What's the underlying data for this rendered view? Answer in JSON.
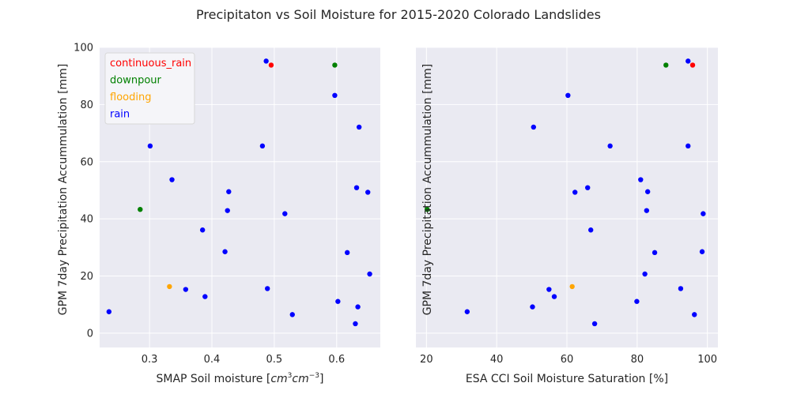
{
  "title": "Precipitaton vs Soil Moisture for 2015-2020 Colorado Landslides",
  "colors": {
    "background": "#eaeaf2",
    "grid": "#ffffff",
    "continuous_rain": "#ff0000",
    "downpour": "#008000",
    "flooding": "#ffa500",
    "rain": "#0000ff"
  },
  "legend": {
    "placement": "top-left",
    "entries": [
      {
        "label": "continuous_rain",
        "color": "#ff0000"
      },
      {
        "label": "downpour",
        "color": "#008000"
      },
      {
        "label": "flooding",
        "color": "#ffa500"
      },
      {
        "label": "rain",
        "color": "#0000ff"
      }
    ]
  },
  "chart_data": [
    {
      "type": "scatter",
      "xlabel": "SMAP Soil moisture [cm³cm⁻³]",
      "ylabel": "GPM 7day Precipitation Accummulation [mm]",
      "xlim": [
        0.22,
        0.67
      ],
      "ylim": [
        -5,
        100
      ],
      "xticks": [
        "0.3",
        "0.4",
        "0.5",
        "0.6"
      ],
      "yticks": [
        "0",
        "20",
        "40",
        "60",
        "80",
        "100"
      ],
      "grid": true,
      "series": [
        {
          "name": "continuous_rain",
          "points": [
            [
              0.495,
              93.8
            ]
          ]
        },
        {
          "name": "downpour",
          "points": [
            [
              0.597,
              93.8
            ],
            [
              0.285,
              43.3
            ]
          ]
        },
        {
          "name": "flooding",
          "points": [
            [
              0.332,
              16.3
            ]
          ]
        },
        {
          "name": "rain",
          "points": [
            [
              0.487,
              95.2
            ],
            [
              0.597,
              83.2
            ],
            [
              0.636,
              72.1
            ],
            [
              0.301,
              65.5
            ],
            [
              0.481,
              65.5
            ],
            [
              0.336,
              53.7
            ],
            [
              0.632,
              50.9
            ],
            [
              0.65,
              49.3
            ],
            [
              0.427,
              49.5
            ],
            [
              0.425,
              42.9
            ],
            [
              0.517,
              41.8
            ],
            [
              0.385,
              36.1
            ],
            [
              0.421,
              28.5
            ],
            [
              0.617,
              28.2
            ],
            [
              0.653,
              20.7
            ],
            [
              0.358,
              15.3
            ],
            [
              0.489,
              15.6
            ],
            [
              0.389,
              12.8
            ],
            [
              0.602,
              11.1
            ],
            [
              0.634,
              9.2
            ],
            [
              0.235,
              7.5
            ],
            [
              0.529,
              6.5
            ],
            [
              0.63,
              3.3
            ]
          ]
        }
      ]
    },
    {
      "type": "scatter",
      "xlabel": "ESA CCI Soil Moisture Saturation [%]",
      "ylabel": "GPM 7day Precipitation Accummulation [mm]",
      "xlim": [
        17,
        103
      ],
      "ylim": [
        -5,
        100
      ],
      "xticks": [
        "20",
        "40",
        "60",
        "80",
        "100"
      ],
      "yticks": [],
      "grid": true,
      "series": [
        {
          "name": "continuous_rain",
          "points": [
            [
              95.8,
              93.8
            ]
          ]
        },
        {
          "name": "downpour",
          "points": [
            [
              88.2,
              93.8
            ],
            [
              20.2,
              43.3
            ]
          ]
        },
        {
          "name": "flooding",
          "points": [
            [
              61.5,
              16.3
            ]
          ]
        },
        {
          "name": "rain",
          "points": [
            [
              94.5,
              95.2
            ],
            [
              60.3,
              83.2
            ],
            [
              50.5,
              72.1
            ],
            [
              72.3,
              65.5
            ],
            [
              94.5,
              65.5
            ],
            [
              81.0,
              53.7
            ],
            [
              65.9,
              50.9
            ],
            [
              83.0,
              49.5
            ],
            [
              62.3,
              49.3
            ],
            [
              82.7,
              42.9
            ],
            [
              98.8,
              41.8
            ],
            [
              66.8,
              36.1
            ],
            [
              85.0,
              28.2
            ],
            [
              98.5,
              28.5
            ],
            [
              82.2,
              20.7
            ],
            [
              92.4,
              15.6
            ],
            [
              54.9,
              15.3
            ],
            [
              56.4,
              12.8
            ],
            [
              79.9,
              11.1
            ],
            [
              50.2,
              9.2
            ],
            [
              31.6,
              7.5
            ],
            [
              96.3,
              6.5
            ],
            [
              67.9,
              3.3
            ]
          ]
        }
      ]
    }
  ]
}
